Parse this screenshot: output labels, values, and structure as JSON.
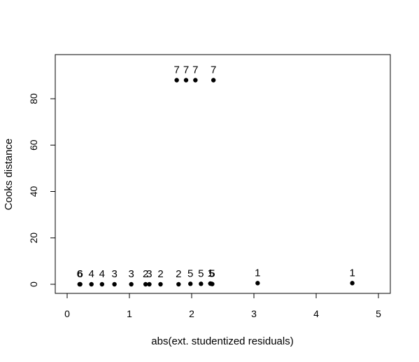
{
  "chart_data": {
    "type": "scatter",
    "title": "",
    "xlabel": "abs(ext. studentized residuals)",
    "ylabel": "Cooks distance",
    "xlim": [
      0,
      5
    ],
    "ylim": [
      0,
      90
    ],
    "xticks": [
      0,
      1,
      2,
      3,
      4,
      5
    ],
    "yticks": [
      0,
      20,
      40,
      60,
      80
    ],
    "grid": false,
    "legend": "none",
    "marker_color": "#000000",
    "points": [
      {
        "x": 0.2,
        "y": 0.0,
        "label": "6"
      },
      {
        "x": 0.21,
        "y": 0.0,
        "label": "6"
      },
      {
        "x": 0.39,
        "y": 0.0,
        "label": "4"
      },
      {
        "x": 0.56,
        "y": 0.0,
        "label": "4"
      },
      {
        "x": 0.76,
        "y": 0.0,
        "label": "3"
      },
      {
        "x": 1.03,
        "y": 0.0,
        "label": "3"
      },
      {
        "x": 1.26,
        "y": 0.0,
        "label": "2"
      },
      {
        "x": 1.32,
        "y": 0.0,
        "label": "3"
      },
      {
        "x": 1.5,
        "y": 0.0,
        "label": "2"
      },
      {
        "x": 1.79,
        "y": 0.0,
        "label": "2"
      },
      {
        "x": 1.98,
        "y": 0.2,
        "label": "5"
      },
      {
        "x": 2.15,
        "y": 0.2,
        "label": "5"
      },
      {
        "x": 2.3,
        "y": 0.3,
        "label": "1"
      },
      {
        "x": 2.32,
        "y": 0.2,
        "label": "5"
      },
      {
        "x": 2.33,
        "y": 0.1,
        "label": "5"
      },
      {
        "x": 3.06,
        "y": 0.5,
        "label": "1"
      },
      {
        "x": 4.58,
        "y": 0.5,
        "label": "1"
      },
      {
        "x": 1.76,
        "y": 88.0,
        "label": "7"
      },
      {
        "x": 1.91,
        "y": 88.0,
        "label": "7"
      },
      {
        "x": 2.06,
        "y": 88.0,
        "label": "7"
      },
      {
        "x": 2.35,
        "y": 88.0,
        "label": "7"
      }
    ]
  }
}
